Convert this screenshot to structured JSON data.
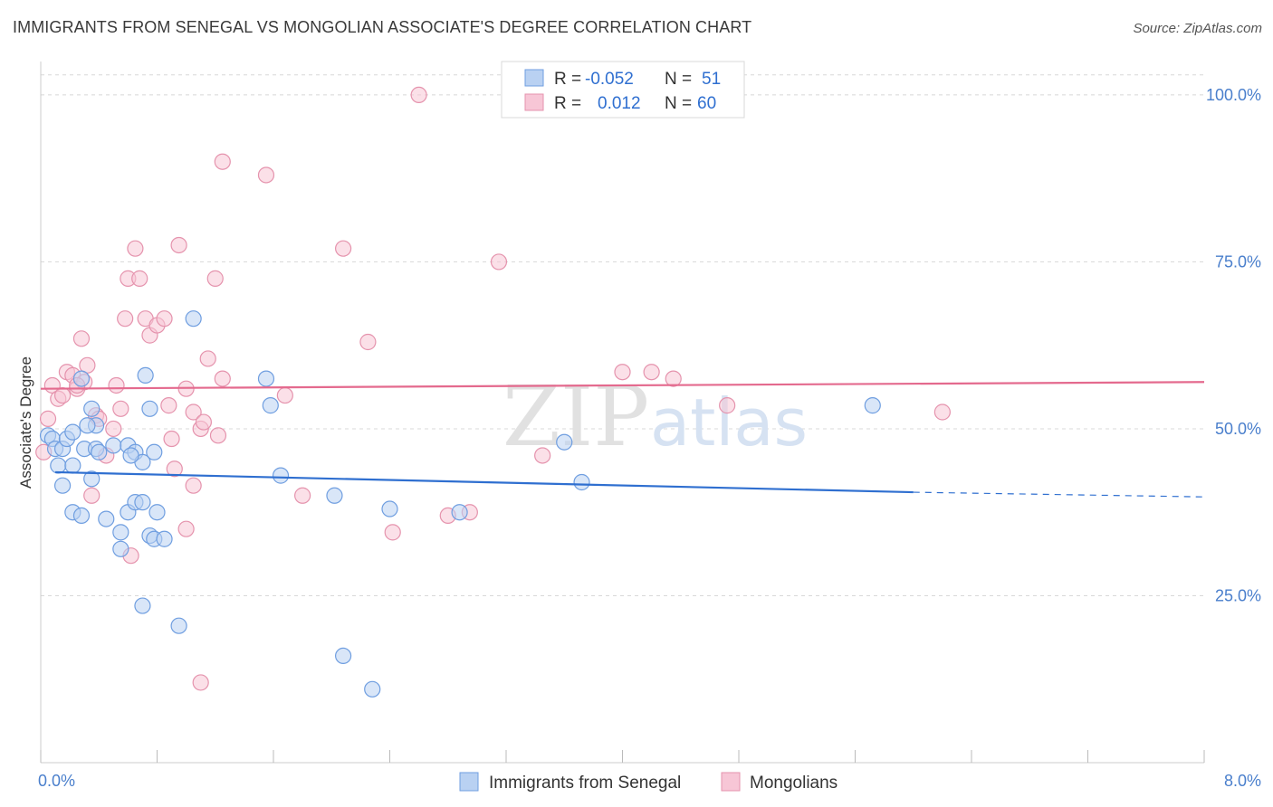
{
  "title": "IMMIGRANTS FROM SENEGAL VS MONGOLIAN ASSOCIATE'S DEGREE CORRELATION CHART",
  "source": "Source: ZipAtlas.com",
  "colors": {
    "blue_fill": "#b9d1f2",
    "blue_stroke": "#6f9ee0",
    "blue_line": "#2f6fd0",
    "pink_fill": "#f7c6d6",
    "pink_stroke": "#e593ad",
    "pink_line": "#e46a8e",
    "grid": "#d8d8d8",
    "tick_text": "#4a7fcc"
  },
  "legend": {
    "rows": [
      {
        "r_label": "R =",
        "r_value": "-0.052",
        "n_label": "N =",
        "n_value": "51"
      },
      {
        "r_label": "R =",
        "r_value": "0.012",
        "n_label": "N =",
        "n_value": "60"
      }
    ]
  },
  "chart_data": {
    "type": "scatter",
    "title": "IMMIGRANTS FROM SENEGAL VS MONGOLIAN ASSOCIATE'S DEGREE CORRELATION CHART",
    "xlabel": "",
    "ylabel": "Associate's Degree",
    "xlim": [
      0,
      8
    ],
    "ylim": [
      0,
      105
    ],
    "x_tick_labels": [
      "0.0%",
      "8.0%"
    ],
    "y_ticks": [
      25,
      50,
      75,
      100
    ],
    "y_tick_labels": [
      "25.0%",
      "50.0%",
      "75.0%",
      "100.0%"
    ],
    "grid": true,
    "legend_position": "top-center",
    "watermark": "ZIPatlas",
    "series": [
      {
        "name": "Immigrants from Senegal",
        "color": "#b9d1f2",
        "trend": {
          "x0": 0.1,
          "y0": 43.5,
          "x1": 6.0,
          "y1": 40.5,
          "dash_to_x": 8.0,
          "dash_to_y": 39.8
        },
        "points": [
          [
            0.05,
            49.0
          ],
          [
            0.08,
            48.5
          ],
          [
            0.1,
            47.0
          ],
          [
            0.15,
            47.0
          ],
          [
            0.12,
            44.5
          ],
          [
            0.22,
            44.5
          ],
          [
            0.18,
            48.5
          ],
          [
            0.22,
            49.5
          ],
          [
            0.3,
            47.0
          ],
          [
            0.35,
            53.0
          ],
          [
            0.38,
            50.5
          ],
          [
            0.28,
            57.5
          ],
          [
            0.32,
            50.5
          ],
          [
            0.38,
            47.0
          ],
          [
            0.5,
            47.5
          ],
          [
            0.6,
            47.5
          ],
          [
            0.65,
            46.5
          ],
          [
            0.7,
            45.0
          ],
          [
            0.75,
            53.0
          ],
          [
            0.78,
            46.5
          ],
          [
            0.72,
            58.0
          ],
          [
            0.15,
            41.5
          ],
          [
            0.22,
            37.5
          ],
          [
            0.28,
            37.0
          ],
          [
            0.35,
            42.5
          ],
          [
            0.45,
            36.5
          ],
          [
            0.55,
            34.5
          ],
          [
            0.6,
            37.5
          ],
          [
            0.65,
            39.0
          ],
          [
            0.7,
            39.0
          ],
          [
            0.75,
            34.0
          ],
          [
            0.8,
            37.5
          ],
          [
            0.55,
            32.0
          ],
          [
            0.78,
            33.5
          ],
          [
            0.85,
            33.5
          ],
          [
            1.05,
            66.5
          ],
          [
            1.55,
            57.5
          ],
          [
            1.58,
            53.5
          ],
          [
            1.65,
            43.0
          ],
          [
            2.02,
            40.0
          ],
          [
            2.4,
            38.0
          ],
          [
            2.88,
            37.5
          ],
          [
            3.6,
            48.0
          ],
          [
            3.72,
            42.0
          ],
          [
            5.72,
            53.5
          ],
          [
            0.7,
            23.5
          ],
          [
            0.95,
            20.5
          ],
          [
            2.08,
            16.0
          ],
          [
            2.28,
            11.0
          ],
          [
            0.62,
            46.0
          ],
          [
            0.4,
            46.5
          ]
        ]
      },
      {
        "name": "Mongolians",
        "color": "#f7c6d6",
        "trend": {
          "x0": 0.0,
          "y0": 56.0,
          "x1": 8.0,
          "y1": 57.0
        },
        "points": [
          [
            0.02,
            46.5
          ],
          [
            0.05,
            51.5
          ],
          [
            0.08,
            56.5
          ],
          [
            0.12,
            54.5
          ],
          [
            0.15,
            55.0
          ],
          [
            0.18,
            58.5
          ],
          [
            0.22,
            58.0
          ],
          [
            0.25,
            56.0
          ],
          [
            0.3,
            57.0
          ],
          [
            0.32,
            59.5
          ],
          [
            0.28,
            63.5
          ],
          [
            0.38,
            52.0
          ],
          [
            0.4,
            51.5
          ],
          [
            0.45,
            46.0
          ],
          [
            0.5,
            50.0
          ],
          [
            0.52,
            56.5
          ],
          [
            0.55,
            53.0
          ],
          [
            0.58,
            66.5
          ],
          [
            0.6,
            72.5
          ],
          [
            0.65,
            77.0
          ],
          [
            0.68,
            72.5
          ],
          [
            0.72,
            66.5
          ],
          [
            0.75,
            64.0
          ],
          [
            0.8,
            65.5
          ],
          [
            0.85,
            66.5
          ],
          [
            0.88,
            53.5
          ],
          [
            0.9,
            48.5
          ],
          [
            0.95,
            77.5
          ],
          [
            1.0,
            56.0
          ],
          [
            1.05,
            52.5
          ],
          [
            1.1,
            50.0
          ],
          [
            1.12,
            51.0
          ],
          [
            1.15,
            60.5
          ],
          [
            1.2,
            72.5
          ],
          [
            1.22,
            49.0
          ],
          [
            1.25,
            57.5
          ],
          [
            0.92,
            44.0
          ],
          [
            1.0,
            35.0
          ],
          [
            1.05,
            41.5
          ],
          [
            0.62,
            31.0
          ],
          [
            1.1,
            12.0
          ],
          [
            1.25,
            90.0
          ],
          [
            1.55,
            88.0
          ],
          [
            1.68,
            55.0
          ],
          [
            1.8,
            40.0
          ],
          [
            2.08,
            77.0
          ],
          [
            2.25,
            63.0
          ],
          [
            2.6,
            100.0
          ],
          [
            2.8,
            37.0
          ],
          [
            2.95,
            37.5
          ],
          [
            3.15,
            75.0
          ],
          [
            3.45,
            46.0
          ],
          [
            4.0,
            58.5
          ],
          [
            4.2,
            58.5
          ],
          [
            4.35,
            57.5
          ],
          [
            4.72,
            53.5
          ],
          [
            6.2,
            52.5
          ],
          [
            0.35,
            40.0
          ],
          [
            0.25,
            56.5
          ],
          [
            2.42,
            34.5
          ]
        ]
      }
    ]
  },
  "bottom_legend": [
    {
      "label": "Immigrants from Senegal"
    },
    {
      "label": "Mongolians"
    }
  ]
}
